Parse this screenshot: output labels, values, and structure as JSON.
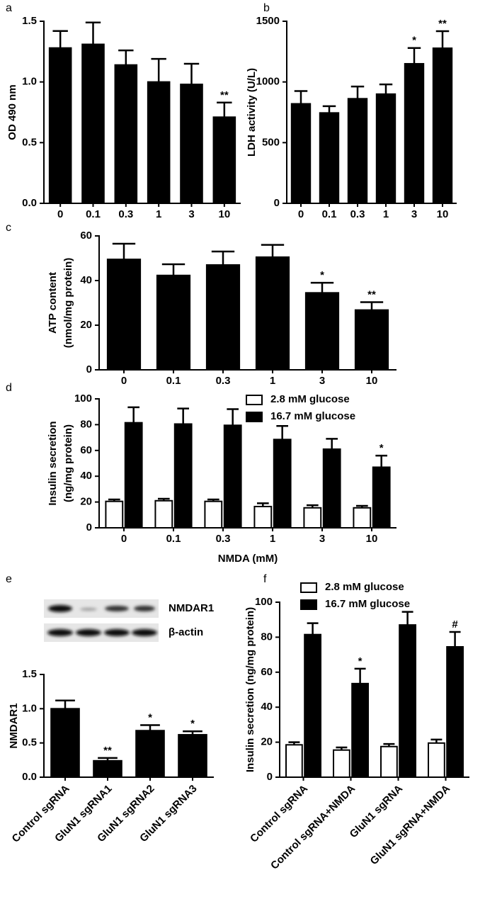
{
  "chart_data": [
    {
      "type": "bar",
      "panel": "a",
      "ylabel": "OD 490 nm",
      "categories": [
        "0",
        "0.1",
        "0.3",
        "1",
        "3",
        "10"
      ],
      "values": [
        1.28,
        1.31,
        1.14,
        1.0,
        0.98,
        0.71
      ],
      "errors": [
        0.14,
        0.18,
        0.12,
        0.19,
        0.17,
        0.12
      ],
      "significance": [
        null,
        null,
        null,
        null,
        null,
        "**"
      ],
      "color": "#000000",
      "ylim": [
        0,
        1.5
      ],
      "yticks": [
        {
          "value": 0,
          "label": "0.0"
        },
        0.5,
        {
          "value": 1,
          "label": "1.0"
        },
        1.5
      ]
    },
    {
      "type": "bar",
      "panel": "b",
      "ylabel": "LDH activity (U/L)",
      "categories": [
        "0",
        "0.1",
        "0.3",
        "1",
        "3",
        "10"
      ],
      "values": [
        820,
        745,
        862,
        900,
        1150,
        1278
      ],
      "errors": [
        105,
        55,
        100,
        80,
        130,
        140
      ],
      "significance": [
        null,
        null,
        null,
        null,
        "*",
        "**"
      ],
      "color": "#000000",
      "ylim": [
        0,
        1500
      ],
      "yticks": [
        0,
        500,
        1000,
        1500
      ]
    },
    {
      "type": "bar",
      "panel": "c",
      "ylabel": [
        "ATP content",
        "(nmol/mg protein)"
      ],
      "categories": [
        "0",
        "0.1",
        "0.3",
        "1",
        "3",
        "10"
      ],
      "values": [
        49.5,
        42.3,
        47,
        50.5,
        34.5,
        26.8
      ],
      "errors": [
        7,
        5,
        6,
        5.5,
        4.5,
        3.5
      ],
      "significance": [
        null,
        null,
        null,
        null,
        "*",
        "**"
      ],
      "color": "#000000",
      "ylim": [
        0,
        60
      ],
      "yticks": [
        0,
        20,
        40,
        60
      ]
    },
    {
      "type": "grouped_bar",
      "panel": "d",
      "ylabel": [
        "Insulin secretion",
        "(ng/mg protein)"
      ],
      "xlabel": "NMDA (mM)",
      "categories": [
        "0",
        "0.1",
        "0.3",
        "1",
        "3",
        "10"
      ],
      "series": [
        {
          "name": "2.8 mM glucose",
          "color": "#ffffff",
          "values": [
            20.5,
            21,
            20.5,
            16.5,
            15.5,
            15.5
          ],
          "errors": [
            1.5,
            1.5,
            1.5,
            2.5,
            2,
            1.5
          ],
          "significance": [
            null,
            null,
            null,
            null,
            null,
            null
          ]
        },
        {
          "name": "16.7 mM glucose",
          "color": "#000000",
          "values": [
            81.5,
            80.5,
            79.5,
            68.5,
            61,
            47
          ],
          "errors": [
            12,
            12,
            12.5,
            10.5,
            8,
            9
          ],
          "significance": [
            null,
            null,
            null,
            null,
            null,
            "*"
          ]
        }
      ],
      "ylim": [
        0,
        100
      ],
      "yticks": [
        0,
        20,
        40,
        60,
        80,
        100
      ]
    },
    {
      "type": "bar",
      "panel": "e",
      "ylabel": "NMDAR1",
      "blot_labels": [
        "NMDAR1",
        "β-actin"
      ],
      "categories": [
        "Control sgRNA",
        "GluN1 sgRNA1",
        "GluN1 sgRNA2",
        "GluN1 sgRNA3"
      ],
      "values": [
        1.0,
        0.24,
        0.68,
        0.62
      ],
      "errors": [
        0.12,
        0.04,
        0.08,
        0.05
      ],
      "significance": [
        null,
        "**",
        "*",
        "*"
      ],
      "color": "#000000",
      "ylim": [
        0,
        1.5
      ],
      "yticks": [
        {
          "value": 0,
          "label": "0.0"
        },
        0.5,
        {
          "value": 1,
          "label": "1.0"
        },
        1.5
      ]
    },
    {
      "type": "grouped_bar",
      "panel": "f",
      "ylabel": "Insulin secretion (ng/mg protein)",
      "categories": [
        "Control sgRNA",
        "Control sgRNA+NMDA",
        "GluN1 sgRNA",
        "GluN1 sgRNA+NMDA"
      ],
      "series": [
        {
          "name": "2.8 mM glucose",
          "color": "#ffffff",
          "values": [
            18.5,
            15.5,
            17.5,
            19.5
          ],
          "errors": [
            1.5,
            1.5,
            1.5,
            2
          ],
          "significance": [
            null,
            null,
            null,
            null
          ]
        },
        {
          "name": "16.7 mM glucose",
          "color": "#000000",
          "values": [
            81.5,
            53.5,
            87,
            74.5
          ],
          "errors": [
            6.5,
            8.5,
            7.5,
            8.5
          ],
          "significance": [
            null,
            "*",
            null,
            "#"
          ]
        }
      ],
      "ylim": [
        0,
        100
      ],
      "yticks": [
        0,
        20,
        40,
        60,
        80,
        100
      ]
    }
  ]
}
